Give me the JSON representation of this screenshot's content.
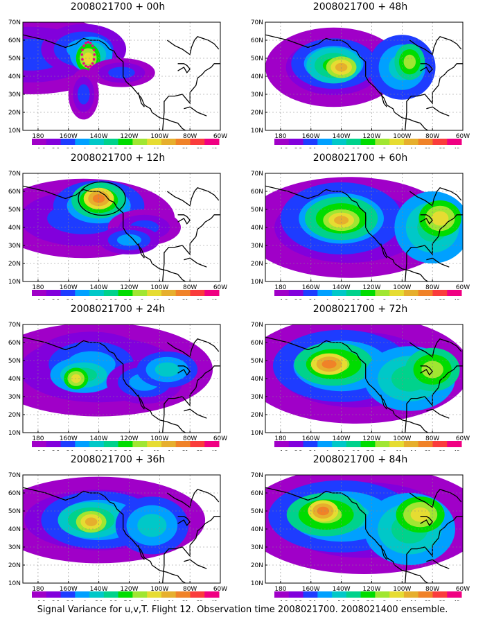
{
  "caption": "Signal Variance for u,v,T. Flight 12. Observation time 2008021700. 2008021400 ensemble.",
  "lat_labels": [
    "70N",
    "60N",
    "50N",
    "40N",
    "30N",
    "20N",
    "10N"
  ],
  "lon_labels": [
    "180",
    "160W",
    "140W",
    "120W",
    "100W",
    "80W",
    "60W"
  ],
  "colorbar": {
    "colors": [
      "#a000c8",
      "#8200dc",
      "#1e3cff",
      "#00a0ff",
      "#00c8c8",
      "#00d28c",
      "#00dc00",
      "#a0e632",
      "#e6dc32",
      "#e6af2d",
      "#f08228",
      "#fa3c3c",
      "#f00082"
    ],
    "labels": [
      "1.6",
      "2.2",
      "3.1",
      "4",
      "5.1",
      "6.3",
      "7.5",
      "9",
      "11",
      "14",
      "21",
      "29",
      "40"
    ]
  },
  "panels": [
    {
      "title": "2008021700 + 00h"
    },
    {
      "title": "2008021700 + 48h"
    },
    {
      "title": "2008021700 + 12h"
    },
    {
      "title": "2008021700 + 60h"
    },
    {
      "title": "2008021700 + 24h"
    },
    {
      "title": "2008021700 + 72h"
    },
    {
      "title": "2008021700 + 36h"
    },
    {
      "title": "2008021700 + 84h"
    }
  ]
}
